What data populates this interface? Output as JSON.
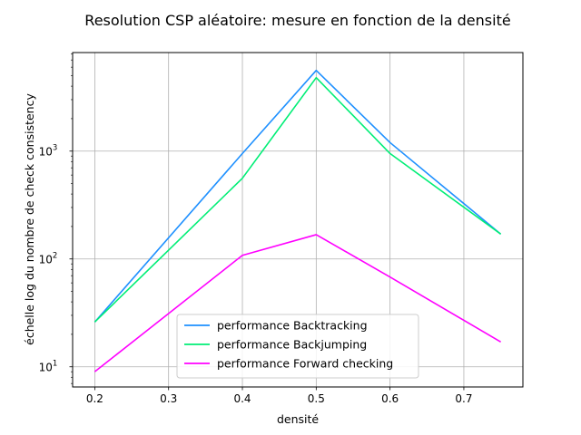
{
  "chart_data": {
    "type": "line",
    "title": "Resolution CSP aléatoire: mesure en fonction de la densité",
    "xlabel": "densité",
    "ylabel": "échelle log du nombre de check consistency",
    "x": [
      0.2,
      0.4,
      0.5,
      0.6,
      0.75
    ],
    "xlim": [
      0.17,
      0.78
    ],
    "ylim": [
      6.5,
      8200
    ],
    "yscale": "log",
    "grid": true,
    "legend_position": "lower-center",
    "x_ticks": [
      {
        "value": 0.2,
        "label": "0.2"
      },
      {
        "value": 0.3,
        "label": "0.3"
      },
      {
        "value": 0.4,
        "label": "0.4"
      },
      {
        "value": 0.5,
        "label": "0.5"
      },
      {
        "value": 0.6,
        "label": "0.6"
      },
      {
        "value": 0.7,
        "label": "0.7"
      }
    ],
    "y_ticks": [
      {
        "value": 10,
        "base": "10",
        "exp": "1"
      },
      {
        "value": 100,
        "base": "10",
        "exp": "2"
      },
      {
        "value": 1000,
        "base": "10",
        "exp": "3"
      }
    ],
    "series": [
      {
        "name": "performance Backtracking",
        "color": "#1e90ff",
        "values": [
          26,
          950,
          5600,
          1200,
          170
        ]
      },
      {
        "name": "performance Backjumping",
        "color": "#00ee76",
        "values": [
          26,
          560,
          4800,
          950,
          170
        ]
      },
      {
        "name": "performance Forward checking",
        "color": "#ff00ff",
        "values": [
          9,
          108,
          168,
          68,
          17
        ]
      }
    ]
  }
}
